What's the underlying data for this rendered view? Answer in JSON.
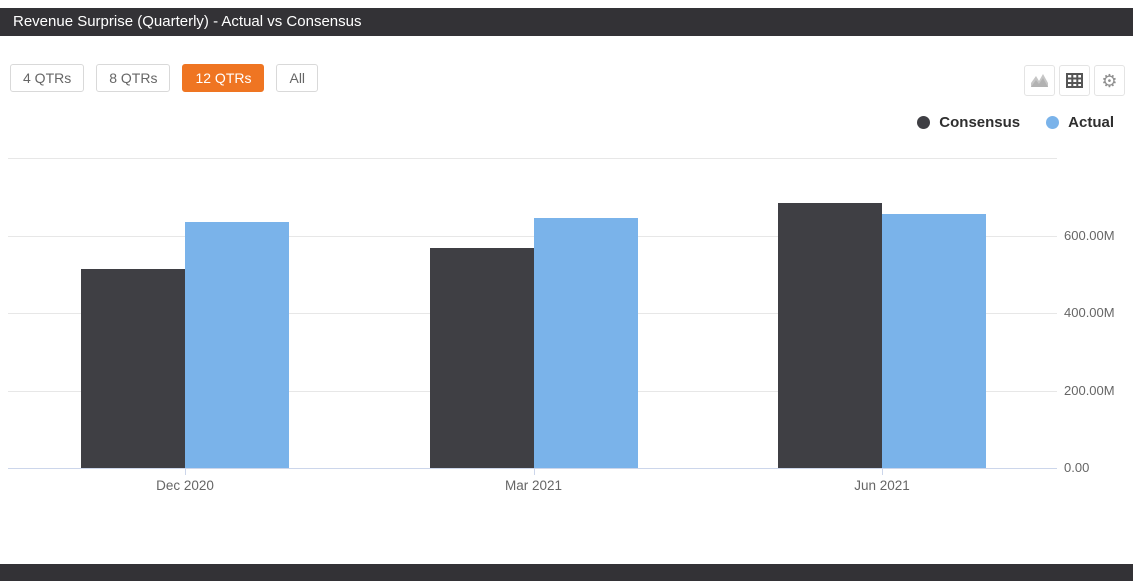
{
  "header": {
    "title": "Revenue Surprise (Quarterly) - Actual vs Consensus"
  },
  "toolbar": {
    "range_buttons": [
      {
        "label": "4 QTRs",
        "active": false
      },
      {
        "label": "8 QTRs",
        "active": false
      },
      {
        "label": "12 QTRs",
        "active": true
      },
      {
        "label": "All",
        "active": false
      }
    ],
    "view_icons": [
      {
        "name": "area-chart-icon",
        "color": "#c6c6c6"
      },
      {
        "name": "table-icon",
        "color": "#555555"
      },
      {
        "name": "gear-icon",
        "color": "#8f8f8f",
        "glyph": "⚙"
      }
    ],
    "active_color": "#ef7522"
  },
  "legend": [
    {
      "label": "Consensus",
      "color": "#3f3f44"
    },
    {
      "label": "Actual",
      "color": "#7ab3ea"
    }
  ],
  "chart_data": {
    "type": "bar",
    "title": "Revenue Surprise (Quarterly) - Actual vs Consensus",
    "categories": [
      "Dec 2020",
      "Mar 2021",
      "Jun 2021"
    ],
    "series": [
      {
        "name": "Consensus",
        "color": "#3f3f44",
        "values_millions": [
          514,
          568,
          684
        ]
      },
      {
        "name": "Actual",
        "color": "#7ab3ea",
        "values_millions": [
          635,
          645,
          656
        ]
      }
    ],
    "xlabel": "",
    "ylabel": "",
    "ylim_millions": [
      0,
      800
    ],
    "yticks": [
      {
        "value_millions": 800,
        "label": ""
      },
      {
        "value_millions": 600,
        "label": "600.00M"
      },
      {
        "value_millions": 400,
        "label": "400.00M"
      },
      {
        "value_millions": 200,
        "label": "200.00M"
      },
      {
        "value_millions": 0,
        "label": "0.00"
      }
    ],
    "grid": true,
    "legend_position": "top-right"
  }
}
